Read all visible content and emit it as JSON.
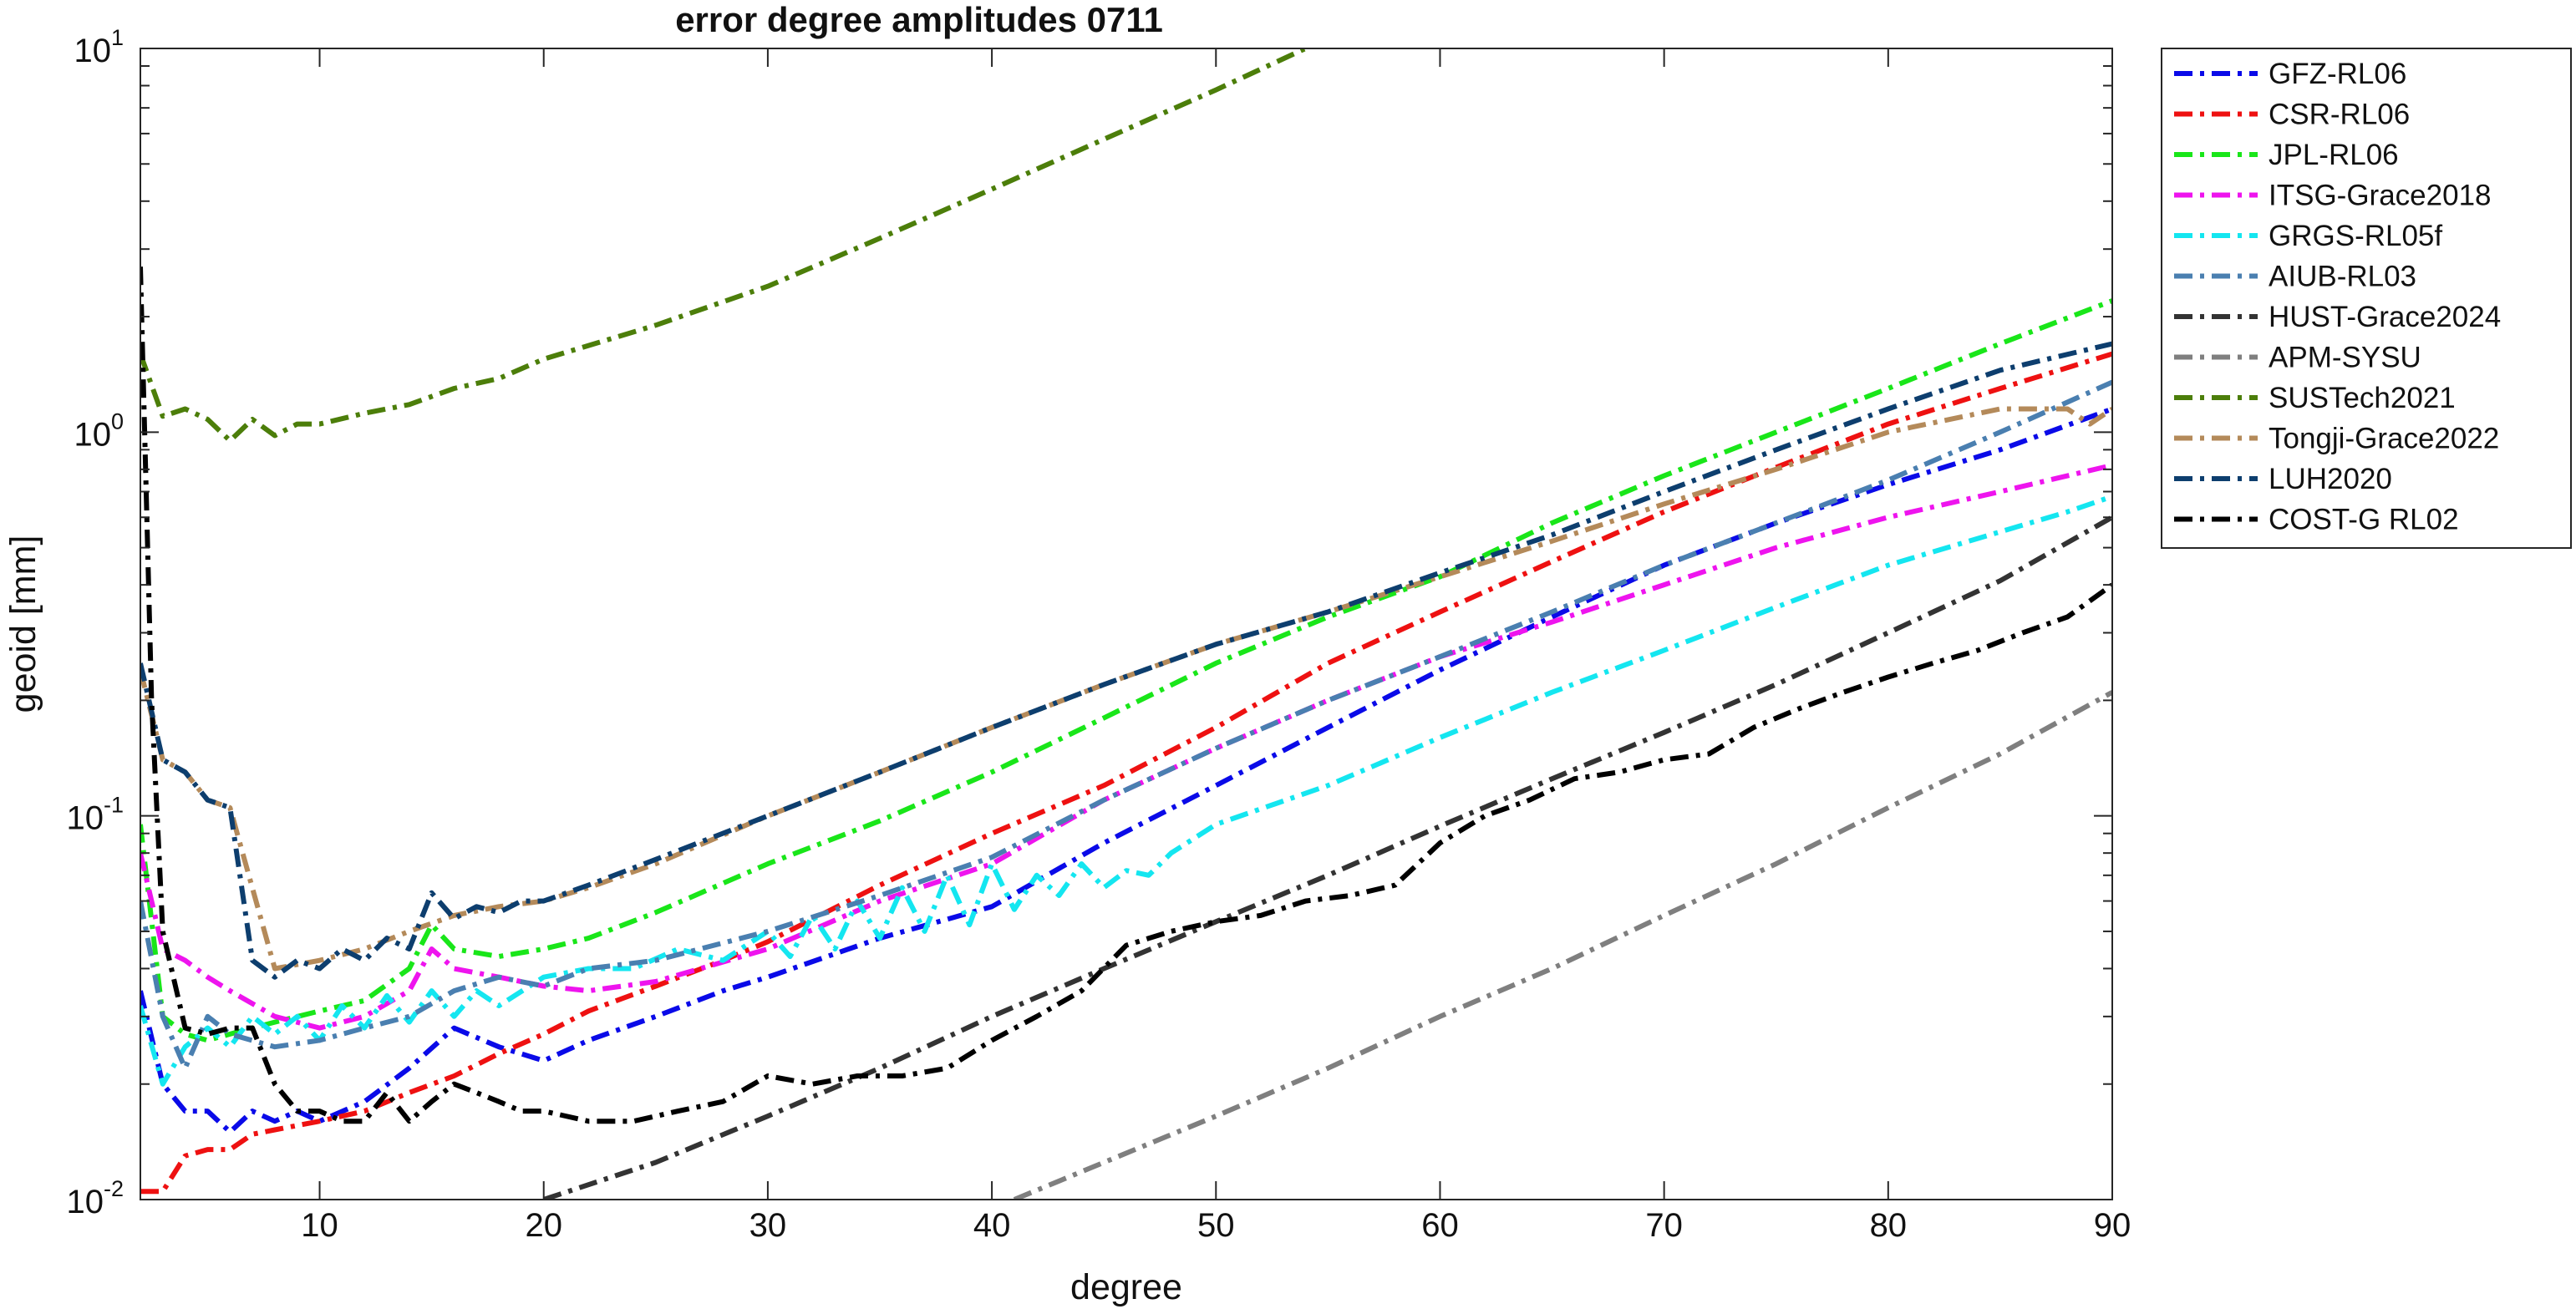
{
  "chart_data": {
    "type": "line",
    "title": "error degree amplitudes 0711",
    "xlabel": "degree",
    "ylabel": "geoid [mm]",
    "xlim": [
      2,
      90
    ],
    "ylim": [
      0.01,
      10
    ],
    "yscale": "log",
    "x_ticks": [
      10,
      20,
      30,
      40,
      50,
      60,
      70,
      80,
      90
    ],
    "x_tick_labels": [
      "10",
      "20",
      "30",
      "40",
      "50",
      "60",
      "70",
      "80",
      "90"
    ],
    "y_ticks": [
      {
        "value": 0.01,
        "base": "10",
        "exp": "-2"
      },
      {
        "value": 0.1,
        "base": "10",
        "exp": "-1"
      },
      {
        "value": 1,
        "base": "10",
        "exp": "0"
      },
      {
        "value": 10,
        "base": "10",
        "exp": "1"
      }
    ],
    "grid": false,
    "legend_position": "outside-right",
    "line_style": "dash-dot",
    "series": [
      {
        "name": "GFZ-RL06",
        "color": "#0a0ae8",
        "x": [
          2,
          3,
          4,
          5,
          6,
          7,
          8,
          9,
          10,
          12,
          14,
          16,
          18,
          20,
          22,
          25,
          28,
          30,
          35,
          40,
          45,
          50,
          55,
          60,
          65,
          70,
          75,
          80,
          85,
          90
        ],
        "y": [
          0.035,
          0.02,
          0.017,
          0.017,
          0.015,
          0.017,
          0.016,
          0.017,
          0.016,
          0.018,
          0.022,
          0.028,
          0.025,
          0.023,
          0.026,
          0.03,
          0.035,
          0.038,
          0.048,
          0.058,
          0.085,
          0.12,
          0.17,
          0.24,
          0.33,
          0.45,
          0.58,
          0.73,
          0.9,
          1.15
        ]
      },
      {
        "name": "CSR-RL06",
        "color": "#ee1111",
        "x": [
          2,
          3,
          4,
          5,
          6,
          7,
          8,
          10,
          12,
          14,
          16,
          18,
          20,
          22,
          25,
          28,
          30,
          35,
          40,
          45,
          50,
          55,
          60,
          65,
          70,
          75,
          80,
          85,
          90
        ],
        "y": [
          0.0105,
          0.0105,
          0.013,
          0.0135,
          0.0135,
          0.0148,
          0.0152,
          0.016,
          0.017,
          0.019,
          0.021,
          0.024,
          0.027,
          0.031,
          0.036,
          0.042,
          0.047,
          0.066,
          0.09,
          0.12,
          0.17,
          0.25,
          0.34,
          0.46,
          0.62,
          0.81,
          1.05,
          1.3,
          1.6
        ]
      },
      {
        "name": "JPL-RL06",
        "color": "#19e619",
        "x": [
          2,
          3,
          4,
          5,
          6,
          7,
          8,
          10,
          12,
          14,
          15,
          16,
          18,
          20,
          22,
          25,
          30,
          35,
          40,
          45,
          50,
          55,
          60,
          65,
          70,
          75,
          80,
          85,
          90
        ],
        "y": [
          0.095,
          0.03,
          0.027,
          0.026,
          0.027,
          0.028,
          0.029,
          0.031,
          0.033,
          0.04,
          0.052,
          0.045,
          0.043,
          0.045,
          0.048,
          0.056,
          0.075,
          0.097,
          0.13,
          0.18,
          0.25,
          0.33,
          0.42,
          0.58,
          0.77,
          1.0,
          1.3,
          1.7,
          2.2
        ]
      },
      {
        "name": "ITSG-Grace2018",
        "color": "#ee14ee",
        "x": [
          2,
          3,
          4,
          5,
          6,
          8,
          10,
          12,
          14,
          15,
          16,
          18,
          20,
          22,
          25,
          30,
          35,
          40,
          45,
          50,
          55,
          60,
          65,
          70,
          75,
          80,
          85,
          90
        ],
        "y": [
          0.08,
          0.045,
          0.042,
          0.038,
          0.035,
          0.03,
          0.028,
          0.03,
          0.035,
          0.045,
          0.04,
          0.038,
          0.036,
          0.035,
          0.037,
          0.045,
          0.06,
          0.075,
          0.11,
          0.15,
          0.2,
          0.26,
          0.32,
          0.4,
          0.5,
          0.6,
          0.7,
          0.82
        ]
      },
      {
        "name": "GRGS-RL05f",
        "color": "#14e6f0",
        "x": [
          2,
          3,
          4,
          5,
          6,
          7,
          8,
          9,
          10,
          11,
          12,
          13,
          14,
          15,
          16,
          17,
          18,
          20,
          22,
          24,
          26,
          28,
          30,
          31,
          32,
          33,
          34,
          35,
          36,
          37,
          38,
          39,
          40,
          41,
          42,
          43,
          44,
          45,
          46,
          47,
          48,
          50,
          55,
          60,
          65,
          70,
          75,
          80,
          85,
          88,
          90
        ],
        "y": [
          0.032,
          0.02,
          0.025,
          0.028,
          0.025,
          0.03,
          0.027,
          0.03,
          0.026,
          0.032,
          0.028,
          0.034,
          0.029,
          0.035,
          0.03,
          0.035,
          0.032,
          0.038,
          0.04,
          0.04,
          0.045,
          0.042,
          0.05,
          0.043,
          0.055,
          0.045,
          0.06,
          0.048,
          0.065,
          0.05,
          0.07,
          0.052,
          0.075,
          0.057,
          0.07,
          0.062,
          0.075,
          0.065,
          0.072,
          0.07,
          0.08,
          0.095,
          0.12,
          0.16,
          0.21,
          0.27,
          0.35,
          0.45,
          0.55,
          0.62,
          0.68
        ]
      },
      {
        "name": "AIUB-RL03",
        "color": "#4a7fb0",
        "x": [
          2,
          3,
          4,
          5,
          6,
          8,
          10,
          12,
          14,
          16,
          18,
          20,
          22,
          25,
          30,
          35,
          40,
          45,
          50,
          55,
          60,
          65,
          70,
          75,
          80,
          85,
          90
        ],
        "y": [
          0.06,
          0.03,
          0.022,
          0.03,
          0.027,
          0.025,
          0.026,
          0.028,
          0.03,
          0.035,
          0.038,
          0.036,
          0.04,
          0.042,
          0.05,
          0.062,
          0.078,
          0.11,
          0.15,
          0.2,
          0.26,
          0.34,
          0.45,
          0.58,
          0.75,
          1.0,
          1.35
        ]
      },
      {
        "name": "HUST-Grace2024",
        "color": "#333333",
        "x": [
          20,
          25,
          30,
          35,
          40,
          45,
          50,
          55,
          60,
          65,
          70,
          75,
          80,
          85,
          90
        ],
        "y": [
          0.01,
          0.0125,
          0.0165,
          0.022,
          0.03,
          0.04,
          0.053,
          0.07,
          0.094,
          0.125,
          0.165,
          0.22,
          0.3,
          0.41,
          0.6
        ]
      },
      {
        "name": "APM-SYSU",
        "color": "#7f7f7f",
        "x": [
          41,
          45,
          50,
          55,
          60,
          65,
          70,
          75,
          80,
          85,
          90
        ],
        "y": [
          0.01,
          0.0125,
          0.0165,
          0.022,
          0.03,
          0.04,
          0.055,
          0.075,
          0.105,
          0.145,
          0.21
        ]
      },
      {
        "name": "SUSTech2021",
        "color": "#4c7e0a",
        "x": [
          2,
          3,
          4,
          5,
          6,
          7,
          8,
          9,
          10,
          12,
          14,
          16,
          18,
          20,
          25,
          30,
          35,
          40,
          45,
          50,
          54
        ],
        "y": [
          1.6,
          1.1,
          1.15,
          1.08,
          0.95,
          1.08,
          0.98,
          1.05,
          1.05,
          1.12,
          1.18,
          1.3,
          1.38,
          1.55,
          1.9,
          2.4,
          3.2,
          4.3,
          5.8,
          7.8,
          10
        ]
      },
      {
        "name": "Tongji-Grace2022",
        "color": "#b48a5a",
        "x": [
          2,
          3,
          4,
          5,
          6,
          8,
          10,
          12,
          14,
          16,
          18,
          20,
          22,
          25,
          30,
          35,
          40,
          45,
          50,
          55,
          60,
          65,
          70,
          75,
          80,
          85,
          88,
          89,
          90
        ],
        "y": [
          0.24,
          0.14,
          0.13,
          0.11,
          0.105,
          0.04,
          0.042,
          0.045,
          0.05,
          0.055,
          0.058,
          0.06,
          0.065,
          0.075,
          0.1,
          0.13,
          0.17,
          0.22,
          0.28,
          0.34,
          0.42,
          0.52,
          0.65,
          0.8,
          1.0,
          1.15,
          1.15,
          1.05,
          1.15
        ]
      },
      {
        "name": "LUH2020",
        "color": "#0d3e6e",
        "x": [
          2,
          3,
          4,
          5,
          6,
          7,
          8,
          9,
          10,
          11,
          12,
          13,
          14,
          15,
          16,
          17,
          18,
          19,
          20,
          22,
          25,
          30,
          35,
          40,
          45,
          50,
          55,
          60,
          65,
          70,
          75,
          80,
          85,
          90
        ],
        "y": [
          0.25,
          0.14,
          0.13,
          0.11,
          0.105,
          0.042,
          0.038,
          0.042,
          0.04,
          0.045,
          0.042,
          0.048,
          0.045,
          0.063,
          0.054,
          0.058,
          0.056,
          0.06,
          0.06,
          0.066,
          0.077,
          0.1,
          0.13,
          0.17,
          0.22,
          0.28,
          0.34,
          0.43,
          0.54,
          0.7,
          0.9,
          1.15,
          1.45,
          1.7
        ]
      },
      {
        "name": "COST-G RL02",
        "color": "#000000",
        "x": [
          2,
          2.5,
          3,
          4,
          5,
          6,
          7,
          8,
          9,
          10,
          11,
          12,
          13,
          14,
          15,
          16,
          17,
          18,
          19,
          20,
          22,
          24,
          26,
          28,
          30,
          32,
          34,
          36,
          38,
          40,
          42,
          44,
          46,
          48,
          50,
          52,
          54,
          56,
          58,
          60,
          62,
          64,
          66,
          68,
          70,
          72,
          74,
          76,
          78,
          80,
          82,
          84,
          86,
          88,
          90
        ],
        "y": [
          2.7,
          0.2,
          0.05,
          0.028,
          0.027,
          0.028,
          0.028,
          0.02,
          0.017,
          0.017,
          0.016,
          0.016,
          0.019,
          0.016,
          0.018,
          0.02,
          0.019,
          0.018,
          0.017,
          0.017,
          0.016,
          0.016,
          0.017,
          0.018,
          0.021,
          0.02,
          0.021,
          0.021,
          0.022,
          0.026,
          0.03,
          0.035,
          0.046,
          0.05,
          0.053,
          0.055,
          0.06,
          0.062,
          0.066,
          0.085,
          0.1,
          0.11,
          0.125,
          0.13,
          0.14,
          0.145,
          0.17,
          0.19,
          0.21,
          0.23,
          0.25,
          0.27,
          0.3,
          0.33,
          0.4
        ]
      }
    ]
  }
}
